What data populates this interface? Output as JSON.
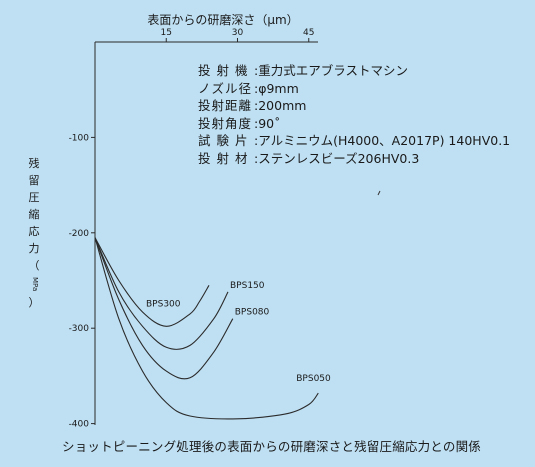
{
  "chart_data": {
    "type": "line",
    "xlabel": "表面からの研磨深さ（μm）",
    "ylabel": "残留圧縮応力（MPa）",
    "ylabel_chars": [
      "残",
      "留",
      "圧",
      "縮",
      "応",
      "力",
      "（",
      "MPa",
      "）"
    ],
    "x_ticks": [
      "15",
      "30",
      "45"
    ],
    "x_tick_values": [
      15,
      30,
      45
    ],
    "y_ticks": [
      "-100",
      "-200",
      "-300",
      "-400"
    ],
    "y_tick_values": [
      -100,
      -200,
      -300,
      -400
    ],
    "xlim": [
      0,
      50
    ],
    "ylim": [
      -400,
      0
    ],
    "x_axis_position": "top",
    "grid": false,
    "series": [
      {
        "name": "BPS300",
        "x": [
          0,
          5,
          10,
          15,
          20,
          22,
          24
        ],
        "y": [
          -205,
          -250,
          -283,
          -298,
          -285,
          -272,
          -255
        ]
      },
      {
        "name": "BPS150",
        "x": [
          0,
          5,
          10,
          15,
          20,
          25,
          28
        ],
        "y": [
          -205,
          -262,
          -298,
          -320,
          -318,
          -290,
          -262
        ]
      },
      {
        "name": "BPS080",
        "x": [
          0,
          5,
          10,
          15,
          20,
          25,
          29
        ],
        "y": [
          -205,
          -270,
          -318,
          -345,
          -352,
          -325,
          -290
        ]
      },
      {
        "name": "BPS050",
        "x": [
          0,
          5,
          10,
          15,
          20,
          30,
          40,
          45,
          47
        ],
        "y": [
          -205,
          -290,
          -345,
          -378,
          -392,
          -395,
          -390,
          -380,
          -368
        ]
      }
    ],
    "annotations": [
      {
        "label": "投 射 機",
        "value": "重力式エアブラストマシン"
      },
      {
        "label": "ノズル径",
        "value": "φ9mm"
      },
      {
        "label": "投射距離",
        "value": "200mm"
      },
      {
        "label": "投射角度",
        "value": "90˚"
      },
      {
        "label": "試 験 片",
        "value": "アルミニウム(H4000、A2017P) 140HV0.1"
      },
      {
        "label": "投 射 材",
        "value": "ステンレスビーズ206HV0.3"
      }
    ],
    "caption": "ショットピーニング処理後の表面からの研磨深さと残留圧縮応力との関係"
  }
}
